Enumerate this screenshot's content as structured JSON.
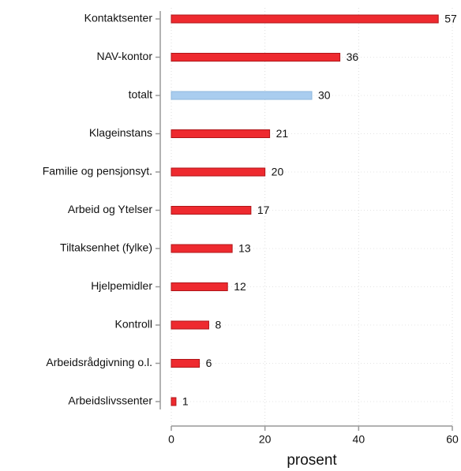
{
  "chart_data": {
    "type": "bar",
    "orientation": "horizontal",
    "categories": [
      "Kontaktsenter",
      "NAV-kontor",
      "totalt",
      "Klageinstans",
      "Familie og pensjonsyt.",
      "Arbeid og Ytelser",
      "Tiltaksenhet (fylke)",
      "Hjelpemidler",
      "Kontroll",
      "Arbeidsrådgivning o.l.",
      "Arbeidslivssenter"
    ],
    "values": [
      57,
      36,
      30,
      21,
      20,
      17,
      13,
      12,
      8,
      6,
      1
    ],
    "colors": [
      "#ee2a2f",
      "#ee2a2f",
      "#a9cdef",
      "#ee2a2f",
      "#ee2a2f",
      "#ee2a2f",
      "#ee2a2f",
      "#ee2a2f",
      "#ee2a2f",
      "#ee2a2f",
      "#ee2a2f"
    ],
    "xlabel": "prosent",
    "xlim": [
      0,
      60
    ],
    "xticks": [
      0,
      20,
      40,
      60
    ],
    "grid": true
  }
}
